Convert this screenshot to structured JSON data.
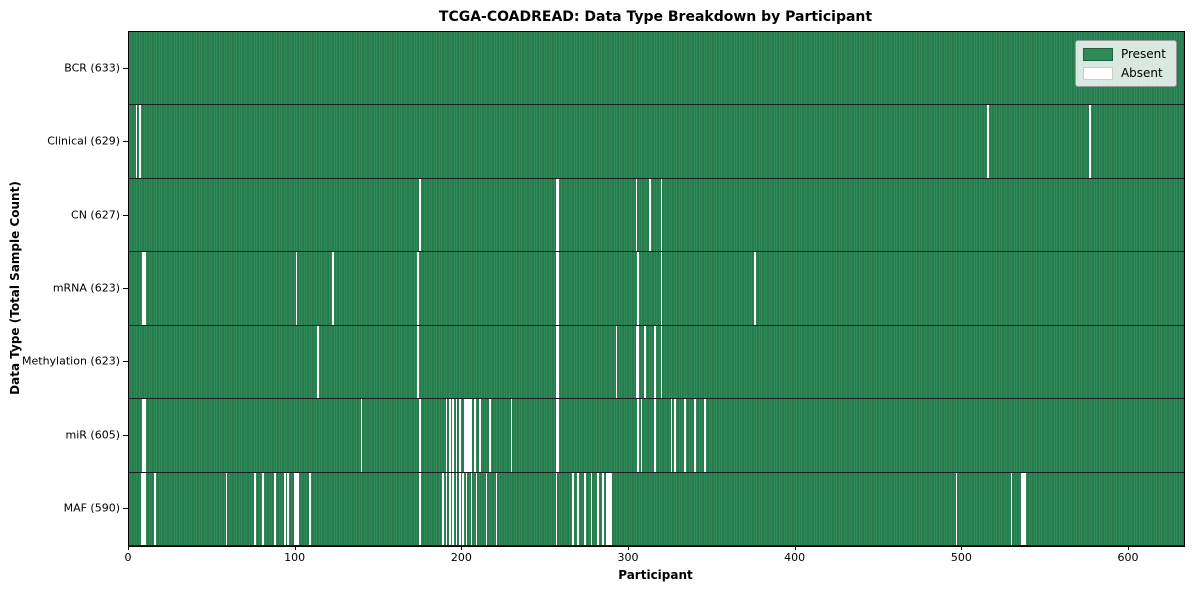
{
  "title": "TCGA-COADREAD: Data Type Breakdown by Participant",
  "xlabel": "Participant",
  "ylabel": "Data Type (Total Sample Count)",
  "legend": {
    "present_label": "Present",
    "absent_label": "Absent"
  },
  "colors": {
    "present": "#2e8b57",
    "present_edge": "#226a47",
    "absent": "#ffffff",
    "row_divider": "#1c1c1c",
    "axis": "#000000"
  },
  "chart_data": {
    "type": "heatmap",
    "title": "TCGA-COADREAD: Data Type Breakdown by Participant",
    "xlabel": "Participant",
    "ylabel": "Data Type (Total Sample Count)",
    "legend_entries": [
      "Present",
      "Absent"
    ],
    "legend_position": "upper right",
    "grid": false,
    "n_participants": 633,
    "x_ticks": [
      0,
      100,
      200,
      300,
      400,
      500,
      600
    ],
    "rows": [
      {
        "name": "bcr",
        "label": "BCR (633)",
        "total": 633,
        "absent_indices": []
      },
      {
        "name": "clinical",
        "label": "Clinical (629)",
        "total": 629,
        "absent_indices": [
          4,
          6,
          515,
          576
        ]
      },
      {
        "name": "cn",
        "label": "CN (627)",
        "total": 627,
        "absent_indices": [
          174,
          256,
          257,
          304,
          312,
          319
        ]
      },
      {
        "name": "mrna",
        "label": "mRNA (623)",
        "total": 623,
        "absent_indices": [
          8,
          9,
          100,
          122,
          173,
          256,
          257,
          305,
          319,
          375
        ]
      },
      {
        "name": "methylation",
        "label": "Methylation (623)",
        "total": 623,
        "absent_indices": [
          113,
          173,
          256,
          257,
          292,
          304,
          305,
          309,
          315,
          319
        ]
      },
      {
        "name": "mir",
        "label": "miR (605)",
        "total": 605,
        "absent_indices": [
          8,
          9,
          139,
          174,
          190,
          192,
          194,
          196,
          198,
          201,
          202,
          203,
          204,
          205,
          207,
          210,
          216,
          229,
          256,
          257,
          305,
          307,
          315,
          325,
          327,
          333,
          339,
          345
        ]
      },
      {
        "name": "maf",
        "label": "MAF (590)",
        "total": 590,
        "absent_indices": [
          7,
          8,
          9,
          15,
          58,
          75,
          80,
          87,
          93,
          95,
          99,
          100,
          101,
          108,
          174,
          188,
          190,
          192,
          194,
          196,
          198,
          200,
          202,
          205,
          208,
          214,
          220,
          256,
          266,
          269,
          273,
          277,
          281,
          284,
          286,
          287,
          288,
          289,
          496,
          529,
          535,
          536,
          537
        ]
      }
    ]
  }
}
